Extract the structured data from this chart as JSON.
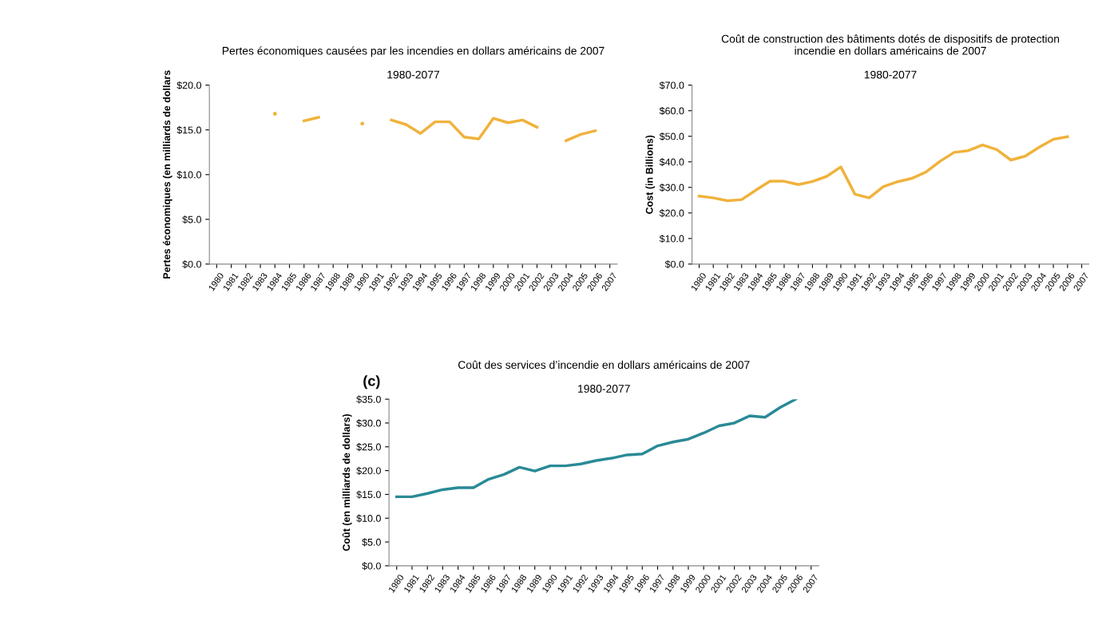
{
  "chart_data": [
    {
      "type": "line",
      "title": "Pertes économiques causées par les incendies en dollars américains de 2007\n\n1980-2077",
      "ylabel": "Pertes économiques (en milliards de dollars",
      "categories": [
        "1980",
        "1981",
        "1982",
        "1983",
        "1984",
        "1985",
        "1986",
        "1987",
        "1988",
        "1989",
        "1990",
        "1991",
        "1992",
        "1993",
        "1994",
        "1995",
        "1996",
        "1997",
        "1998",
        "1999",
        "2000",
        "2001",
        "2002",
        "2003",
        "2004",
        "2005",
        "2006",
        "2007"
      ],
      "series": [
        {
          "color": "#f0b23c",
          "values": [
            null,
            null,
            null,
            null,
            16.8,
            null,
            16.0,
            16.4,
            null,
            null,
            15.7,
            null,
            16.1,
            15.6,
            14.6,
            15.9,
            15.9,
            14.2,
            14.0,
            16.3,
            15.8,
            16.1,
            15.3,
            null,
            13.8,
            14.5,
            14.9,
            null
          ]
        }
      ],
      "ylim": [
        0,
        20
      ],
      "yticks": [
        {
          "value": 0,
          "label": "$0.0"
        },
        {
          "value": 5,
          "label": "$5.0"
        },
        {
          "value": 10,
          "label": "$10.0"
        },
        {
          "value": 15,
          "label": "$15.0"
        },
        {
          "value": 20,
          "label": "$20.0"
        }
      ],
      "grid": false,
      "legend": false
    },
    {
      "type": "line",
      "title": "Coût de construction des bâtiments dotés de dispositifs de protection\nincendie en dollars américains de 2007\n\n1980-2077",
      "ylabel": "Cost (in Billions)",
      "categories": [
        "1980",
        "1981",
        "1982",
        "1983",
        "1984",
        "1985",
        "1986",
        "1987",
        "1988",
        "1989",
        "1990",
        "1991",
        "1992",
        "1993",
        "1994",
        "1995",
        "1996",
        "1997",
        "1998",
        "1999",
        "2000",
        "2001",
        "2002",
        "2003",
        "2004",
        "2005",
        "2006",
        "2007"
      ],
      "series": [
        {
          "color": "#f0b23c",
          "values": [
            26.6,
            25.9,
            24.8,
            25.2,
            28.9,
            32.4,
            32.4,
            31.1,
            32.3,
            34.3,
            38.0,
            27.3,
            25.9,
            30.3,
            32.2,
            33.5,
            36.0,
            40.2,
            43.7,
            44.4,
            46.6,
            44.8,
            40.7,
            42.2,
            45.7,
            48.8,
            49.8,
            null
          ]
        }
      ],
      "ylim": [
        0,
        70
      ],
      "yticks": [
        {
          "value": 0,
          "label": "$0.0"
        },
        {
          "value": 10,
          "label": "$10.0"
        },
        {
          "value": 20,
          "label": "$20.0"
        },
        {
          "value": 30,
          "label": "$30.0"
        },
        {
          "value": 40,
          "label": "$40.0"
        },
        {
          "value": 50,
          "label": "$50.0"
        },
        {
          "value": 60,
          "label": "$60.0"
        },
        {
          "value": 70,
          "label": "$70.0"
        }
      ],
      "grid": false,
      "legend": false
    },
    {
      "type": "line",
      "title": "Coût des services d’incendie en dollars américains de 2007\n\n1980-2077",
      "ylabel": "Coût (en milliards de dollars)",
      "annotations": [
        "(c)"
      ],
      "categories": [
        "1980",
        "1981",
        "1982",
        "1983",
        "1984",
        "1985",
        "1986",
        "1987",
        "1988",
        "1989",
        "1990",
        "1991",
        "1992",
        "1993",
        "1994",
        "1995",
        "1996",
        "1997",
        "1998",
        "1999",
        "2000",
        "2001",
        "2002",
        "2003",
        "2004",
        "2005",
        "2006",
        "2007"
      ],
      "series": [
        {
          "color": "#2a8a96",
          "values": [
            14.5,
            14.5,
            15.2,
            16.0,
            16.4,
            16.4,
            18.2,
            19.2,
            20.7,
            19.9,
            21.0,
            21.0,
            21.4,
            22.1,
            22.6,
            23.3,
            23.5,
            25.2,
            26.0,
            26.6,
            27.9,
            29.4,
            30.0,
            31.5,
            31.2,
            33.3,
            35.0,
            null
          ]
        }
      ],
      "ylim": [
        0,
        35
      ],
      "yticks": [
        {
          "value": 0,
          "label": "$0.0"
        },
        {
          "value": 5,
          "label": "$5.0"
        },
        {
          "value": 10,
          "label": "$10.0"
        },
        {
          "value": 15,
          "label": "$15.0"
        },
        {
          "value": 20,
          "label": "$20.0"
        },
        {
          "value": 25,
          "label": "$25.0"
        },
        {
          "value": 30,
          "label": "$30.0"
        },
        {
          "value": 35,
          "label": "$35.0"
        }
      ],
      "grid": false,
      "legend": false
    }
  ]
}
